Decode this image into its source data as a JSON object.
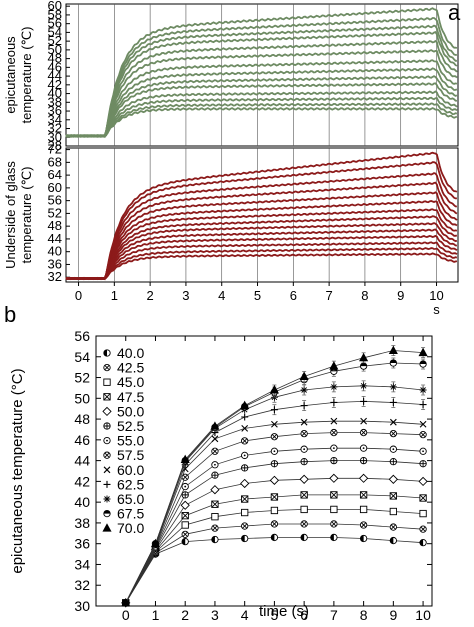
{
  "chart_data": [
    {
      "panel_label": "a",
      "type": "line",
      "subplots": [
        {
          "ylabel_lines": [
            "epicutaneous",
            "temperature (℃)"
          ],
          "ylim": [
            28,
            60.5
          ],
          "yticks": [
            28,
            30,
            32,
            34,
            36,
            38,
            40,
            42,
            44,
            46,
            48,
            50,
            52,
            54,
            56,
            58,
            60
          ],
          "color": "#6e8b63",
          "baseline": 30.3,
          "series_plateau": [
            36.5,
            37.3,
            38.4,
            39.7,
            41.4,
            42.6,
            44.1,
            45.8,
            47.8,
            49.5,
            51.3,
            52.6,
            53.8,
            55.0
          ],
          "series_end_value": [
            36.5,
            37.6,
            38.9,
            40.3,
            42.2,
            43.8,
            45.6,
            47.5,
            49.8,
            51.9,
            53.9,
            55.4,
            57.2,
            59.4
          ]
        },
        {
          "ylabel_lines": [
            "Underside of glass",
            "temperature (℃)"
          ],
          "ylim": [
            30.5,
            72.5
          ],
          "yticks": [
            32,
            36,
            40,
            44,
            48,
            52,
            56,
            60,
            64,
            68,
            72
          ],
          "color": "#8c1a1a",
          "baseline": 31.6,
          "series_plateau": [
            38.5,
            39.8,
            41.5,
            43.2,
            44.8,
            46.5,
            48.0,
            49.8,
            51.5,
            53.5,
            55.5,
            57.5,
            59.5,
            61.0
          ],
          "series_end_value": [
            39.3,
            41.0,
            42.8,
            44.8,
            46.8,
            48.8,
            51.0,
            53.2,
            55.8,
            58.5,
            61.5,
            64.5,
            68.0,
            71.0
          ]
        }
      ],
      "x": [
        0,
        1,
        2,
        3,
        4,
        5,
        6,
        7,
        8,
        9,
        10
      ],
      "xlim": [
        -0.35,
        10.6
      ],
      "xlabel": "s",
      "vertical_gridlines_at": [
        0,
        1,
        2,
        3,
        4,
        5,
        6,
        7,
        8,
        9,
        10
      ]
    },
    {
      "panel_label": "b",
      "type": "line",
      "xlabel": "time (s)",
      "ylabel": "epicutaneous temperature (°C)",
      "x": [
        0,
        1,
        2,
        3,
        4,
        5,
        6,
        7,
        8,
        9,
        10
      ],
      "xlim": [
        -1,
        10.3
      ],
      "ylim": [
        30,
        56
      ],
      "yticks": [
        30,
        32,
        34,
        36,
        38,
        40,
        42,
        44,
        46,
        48,
        50,
        52,
        54,
        56
      ],
      "series": [
        {
          "name": "40.0",
          "marker": "half-filled-circle",
          "values": [
            30.3,
            35.0,
            36.2,
            36.4,
            36.5,
            36.6,
            36.6,
            36.6,
            36.5,
            36.3,
            36.1
          ]
        },
        {
          "name": "42.5",
          "marker": "circle-x",
          "values": [
            30.3,
            35.1,
            36.9,
            37.5,
            37.7,
            37.9,
            37.9,
            37.9,
            37.8,
            37.6,
            37.4
          ]
        },
        {
          "name": "45.0",
          "marker": "square",
          "values": [
            30.3,
            35.2,
            37.8,
            38.6,
            39.0,
            39.2,
            39.3,
            39.3,
            39.3,
            39.1,
            38.9
          ]
        },
        {
          "name": "47.5",
          "marker": "square-x",
          "values": [
            30.3,
            35.3,
            38.7,
            39.8,
            40.3,
            40.5,
            40.7,
            40.7,
            40.7,
            40.6,
            40.4
          ]
        },
        {
          "name": "50.0",
          "marker": "diamond",
          "values": [
            30.3,
            35.4,
            39.7,
            41.2,
            41.8,
            42.1,
            42.2,
            42.3,
            42.3,
            42.2,
            42.0
          ]
        },
        {
          "name": "52.5",
          "marker": "circle-plus",
          "values": [
            30.3,
            35.5,
            40.7,
            42.6,
            43.3,
            43.7,
            43.9,
            44.0,
            44.0,
            43.9,
            43.7
          ]
        },
        {
          "name": "55.0",
          "marker": "circle-dot",
          "values": [
            30.3,
            35.6,
            41.5,
            43.6,
            44.5,
            44.9,
            45.1,
            45.2,
            45.2,
            45.1,
            44.9
          ]
        },
        {
          "name": "57.5",
          "marker": "circle-x2",
          "values": [
            30.3,
            35.7,
            42.4,
            44.9,
            45.9,
            46.3,
            46.6,
            46.7,
            46.7,
            46.6,
            46.5
          ]
        },
        {
          "name": "60.0",
          "marker": "x",
          "values": [
            30.3,
            35.8,
            43.2,
            46.1,
            47.1,
            47.5,
            47.7,
            47.8,
            47.8,
            47.7,
            47.5
          ]
        },
        {
          "name": "62.5",
          "marker": "plus",
          "values": [
            30.3,
            35.9,
            43.6,
            46.7,
            48.2,
            48.9,
            49.3,
            49.6,
            49.7,
            49.6,
            49.4
          ]
        },
        {
          "name": "65.0",
          "marker": "asterisk",
          "values": [
            30.3,
            36.0,
            43.9,
            47.1,
            48.9,
            50.1,
            50.8,
            51.1,
            51.2,
            51.1,
            50.8
          ]
        },
        {
          "name": "67.5",
          "marker": "half-filled-circle-top",
          "values": [
            30.3,
            36.0,
            44.0,
            47.2,
            49.2,
            50.6,
            51.8,
            52.6,
            53.1,
            53.4,
            53.3
          ]
        },
        {
          "name": "70.0",
          "marker": "triangle",
          "values": [
            30.3,
            36.0,
            44.1,
            47.3,
            49.3,
            50.8,
            52.1,
            53.1,
            53.9,
            54.6,
            54.4
          ]
        }
      ]
    }
  ]
}
